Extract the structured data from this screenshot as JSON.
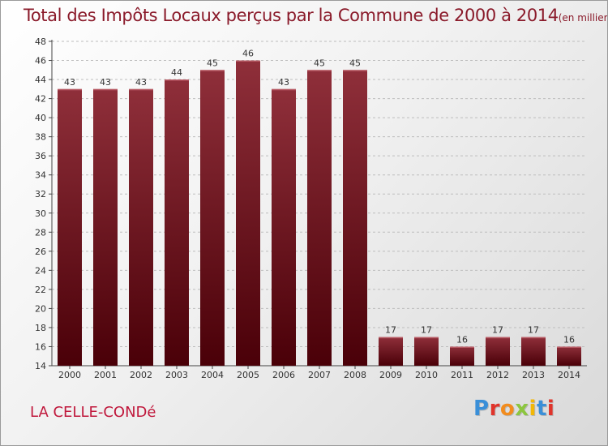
{
  "header": {
    "title": "Total des Impôts Locaux perçus par la Commune de 2000 à 2014",
    "unit": "(en milliers d'€)"
  },
  "commune_name": "LA CELLE-CONDé",
  "logo": {
    "text": "Proxiti",
    "colors": [
      "#3a8fd8",
      "#e0342b",
      "#f28c1e",
      "#8cc63f",
      "#f2b705",
      "#3a8fd8",
      "#e0342b"
    ]
  },
  "colors": {
    "title": "#8a1a2a",
    "bar_top": "#8f2f3a",
    "bar_bottom": "#4a0008",
    "axis": "#444444",
    "grid": "#bdbdbd",
    "commune": "#c0183c"
  },
  "chart_data": {
    "type": "bar",
    "title": "Total des Impôts Locaux perçus par la Commune de 2000 à 2014",
    "categories": [
      "2000",
      "2001",
      "2002",
      "2003",
      "2004",
      "2005",
      "2006",
      "2007",
      "2008",
      "2009",
      "2010",
      "2011",
      "2012",
      "2013",
      "2014"
    ],
    "values": [
      43,
      43,
      43,
      44,
      45,
      46,
      43,
      45,
      45,
      17,
      17,
      16,
      17,
      17,
      16
    ],
    "ylim": [
      14,
      48
    ],
    "yticks": [
      14,
      16,
      18,
      20,
      22,
      24,
      26,
      28,
      30,
      32,
      34,
      36,
      38,
      40,
      42,
      44,
      46,
      48
    ],
    "grid": true,
    "data_labels": true
  }
}
